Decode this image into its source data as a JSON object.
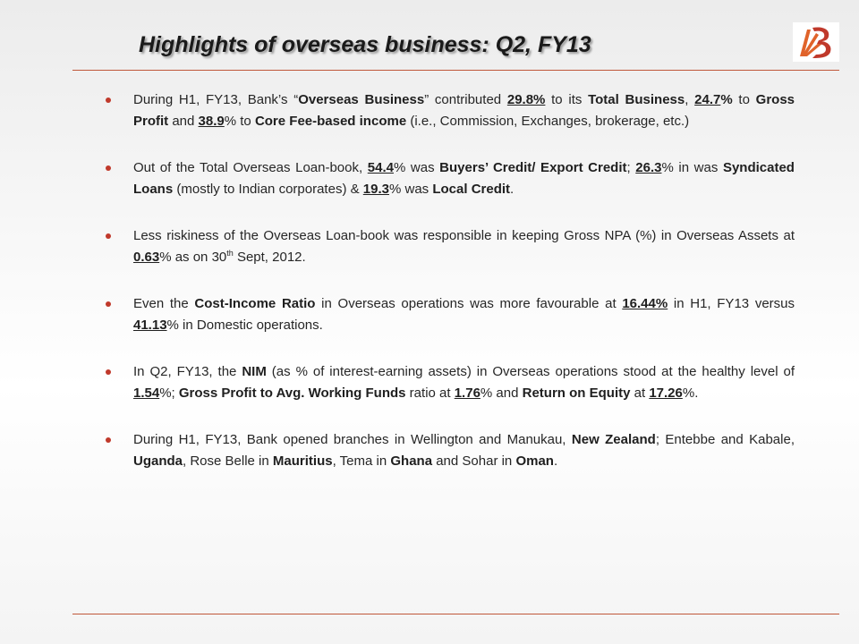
{
  "slide": {
    "title": "Highlights of overseas business: Q2, FY13",
    "logo": "bank-of-baroda-logo",
    "colors": {
      "rule": "#c0583a",
      "bullet": "#c0392b",
      "logo_orange": "#e0632a",
      "logo_red": "#c0392b"
    }
  },
  "bullets": [
    {
      "segments": [
        {
          "t": "During H1, FY13, Bank’s “"
        },
        {
          "t": "Overseas Business",
          "b": true
        },
        {
          "t": "” contributed "
        },
        {
          "t": "29.8%",
          "u": true
        },
        {
          "t": " to its "
        },
        {
          "t": "Total Business",
          "b": true
        },
        {
          "t": ", "
        },
        {
          "t": "24.7",
          "u": true
        },
        {
          "t": "%",
          "b": true
        },
        {
          "t": " to "
        },
        {
          "t": "Gross Profit",
          "b": true
        },
        {
          "t": " and "
        },
        {
          "t": "38.9",
          "u": true
        },
        {
          "t": "% to "
        },
        {
          "t": "Core Fee-based income",
          "b": true
        },
        {
          "t": " (i.e., Commission, Exchanges, brokerage, etc.)"
        }
      ]
    },
    {
      "segments": [
        {
          "t": "Out of the Total Overseas Loan-book, "
        },
        {
          "t": "54.4",
          "u": true
        },
        {
          "t": "% was "
        },
        {
          "t": "Buyers’ Credit/ Export Credit",
          "b": true
        },
        {
          "t": "; "
        },
        {
          "t": "26.3",
          "u": true
        },
        {
          "t": "% in was "
        },
        {
          "t": "Syndicated Loans",
          "b": true
        },
        {
          "t": " (mostly to Indian corporates) & "
        },
        {
          "t": "19.3",
          "u": true
        },
        {
          "t": "%  was "
        },
        {
          "t": "Local Credit",
          "b": true
        },
        {
          "t": "."
        }
      ]
    },
    {
      "segments": [
        {
          "t": "Less riskiness of the Overseas Loan-book was responsible in keeping Gross NPA (%) in Overseas Assets at  "
        },
        {
          "t": "0.63",
          "u": true
        },
        {
          "t": "% as on 30"
        },
        {
          "t": "th",
          "sup": true
        },
        {
          "t": " Sept, 2012."
        }
      ]
    },
    {
      "segments": [
        {
          "t": "Even the "
        },
        {
          "t": "Cost-Income Ratio",
          "b": true
        },
        {
          "t": " in Overseas operations was more favourable at "
        },
        {
          "t": "16.44%",
          "u": true
        },
        {
          "t": " in H1, FY13 versus "
        },
        {
          "t": "41.13",
          "u": true
        },
        {
          "t": "% in Domestic operations."
        }
      ]
    },
    {
      "segments": [
        {
          "t": "In Q2, FY13, the "
        },
        {
          "t": "NIM",
          "b": true
        },
        {
          "t": " (as % of interest-earning assets) in Overseas operations stood at the healthy level of "
        },
        {
          "t": "1.54",
          "u": true
        },
        {
          "t": "%; "
        },
        {
          "t": "Gross Profit to Avg. Working Funds",
          "b": true
        },
        {
          "t": " ratio at "
        },
        {
          "t": "1.76",
          "u": true
        },
        {
          "t": "% and "
        },
        {
          "t": "Return on Equity",
          "b": true
        },
        {
          "t": " at "
        },
        {
          "t": "17.26",
          "u": true
        },
        {
          "t": "%."
        }
      ]
    },
    {
      "segments": [
        {
          "t": "During H1, FY13, Bank opened branches in Wellington and Manukau, "
        },
        {
          "t": "New Zealand",
          "b": true
        },
        {
          "t": "; Entebbe and Kabale, "
        },
        {
          "t": "Uganda",
          "b": true
        },
        {
          "t": ", Rose Belle in "
        },
        {
          "t": "Mauritius",
          "b": true
        },
        {
          "t": ", Tema in "
        },
        {
          "t": "Ghana",
          "b": true
        },
        {
          "t": " and Sohar in "
        },
        {
          "t": "Oman",
          "b": true
        },
        {
          "t": "."
        }
      ]
    }
  ]
}
